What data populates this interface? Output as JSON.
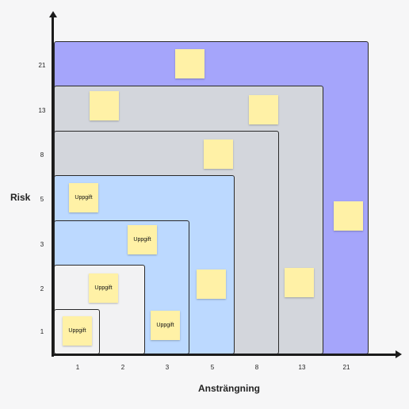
{
  "colors": {
    "zone_21": "#a5a5fb",
    "zone_13": "#d3d6dc",
    "zone_8": "#d3d6dc",
    "zone_5": "#bcd9ff",
    "zone_3": "#bcd9ff",
    "zone_2": "#f2f2f3",
    "zone_1": "#f2f2f3",
    "note": "#fff1a6"
  },
  "axes": {
    "y_title": "Risk",
    "x_title": "Ansträngning",
    "y_ticks": [
      "21",
      "13",
      "8",
      "5",
      "3",
      "2",
      "1"
    ],
    "x_ticks": [
      "1",
      "2",
      "3",
      "5",
      "8",
      "13",
      "21"
    ]
  },
  "zones": [
    "21",
    "13",
    "8",
    "5",
    "3",
    "2",
    "1"
  ],
  "notes": [
    {
      "label": "",
      "zone": "21"
    },
    {
      "label": "",
      "zone": "13"
    },
    {
      "label": "",
      "zone": "13"
    },
    {
      "label": "",
      "zone": "8"
    },
    {
      "label": "Uppgift",
      "zone": "5"
    },
    {
      "label": "",
      "zone": "21"
    },
    {
      "label": "Uppgift",
      "zone": "3"
    },
    {
      "label": "",
      "zone": "5"
    },
    {
      "label": "",
      "zone": "8"
    },
    {
      "label": "Uppgift",
      "zone": "2"
    },
    {
      "label": "Uppgift",
      "zone": "1"
    },
    {
      "label": "Uppgift",
      "zone": "3"
    }
  ]
}
